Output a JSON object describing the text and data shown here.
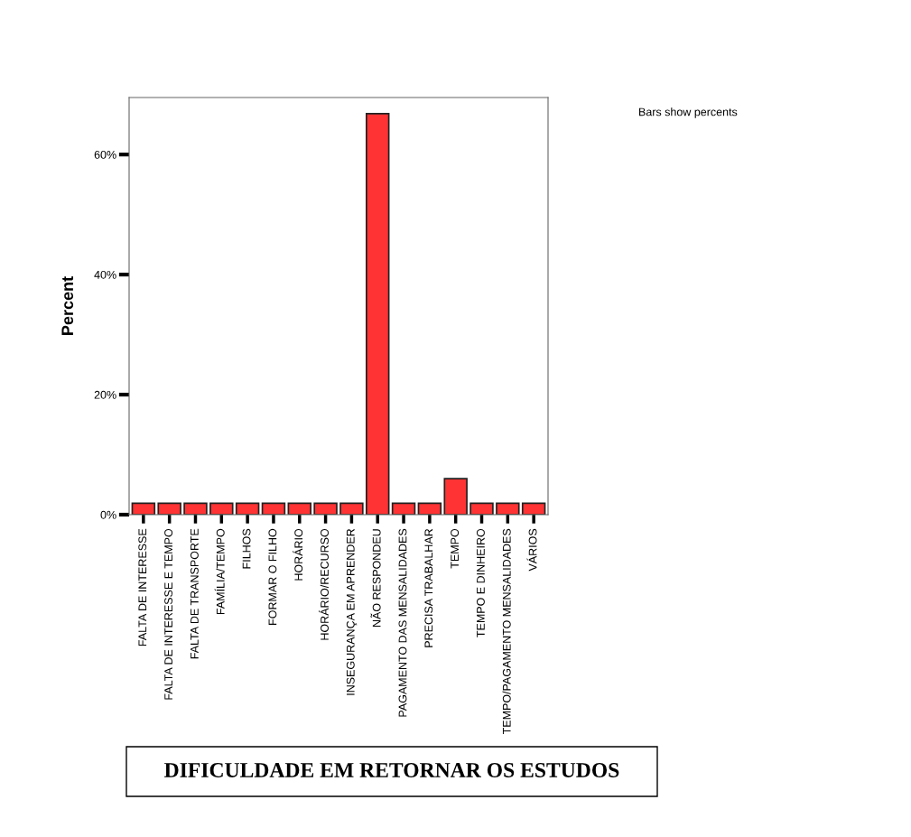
{
  "chart_data": {
    "type": "bar",
    "title": "DIFICULDADE EM RETORNAR OS ESTUDOS",
    "ylabel": "Percent",
    "annotations": [
      "Bars show percents"
    ],
    "categories": [
      "FALTA DE INTERESSE",
      "FALTA DE INTERESSE E TEMPO",
      "FALTA DE TRANSPORTE",
      "FAMÍLIA/TEMPO",
      "FILHOS",
      "FORMAR O FILHO",
      "HORÁRIO",
      "HORÁRIO/RECURSO",
      "INSEGURANÇA EM APRENDER",
      "NÃO RESPONDEU",
      "PAGAMENTO DAS MENSALIDADES",
      "PRECISA TRABALHAR",
      "TEMPO",
      "TEMPO E DINHEIRO",
      "TEMPO/PAGAMENTO MENSALIDADES",
      "VÁRIOS"
    ],
    "values": [
      1.9,
      1.9,
      1.9,
      1.9,
      1.9,
      1.9,
      1.9,
      1.9,
      1.9,
      66.8,
      1.9,
      1.9,
      6.0,
      1.9,
      1.9,
      1.9
    ],
    "color": "#ff3333",
    "ylim": [
      0,
      69.5
    ],
    "yticks": [
      {
        "value": 0,
        "label": "0%"
      },
      {
        "value": 20,
        "label": "20%"
      },
      {
        "value": 40,
        "label": "40%"
      },
      {
        "value": 60,
        "label": "60%"
      }
    ],
    "grid": false,
    "legend": false
  }
}
